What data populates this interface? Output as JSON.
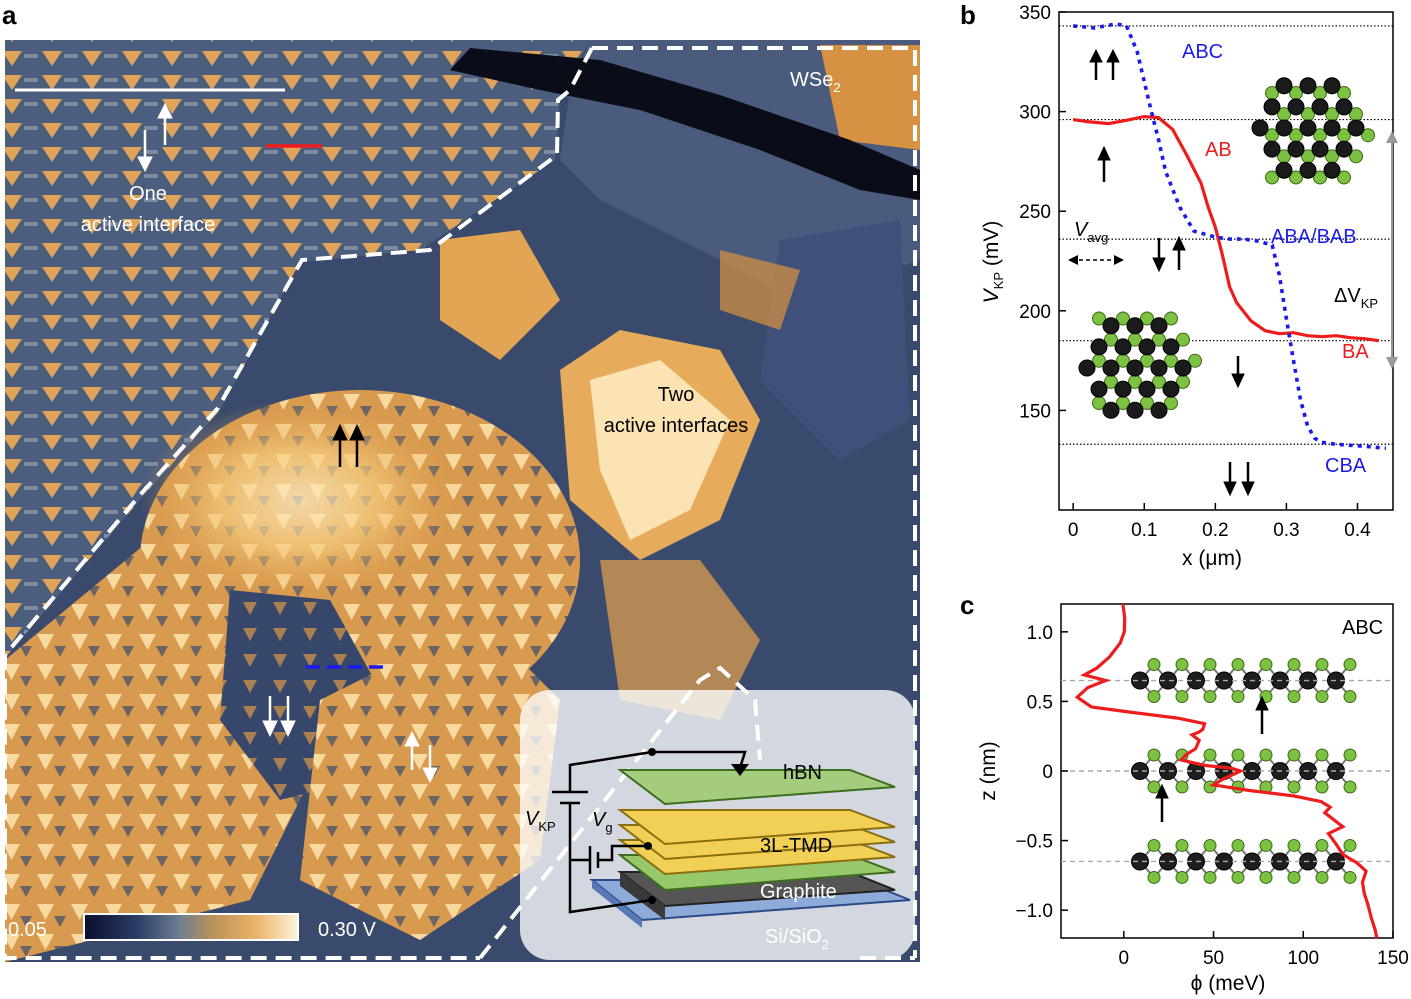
{
  "panel_a": {
    "letter": "a",
    "label_wse2": "WSe",
    "label_wse2_sub": "2",
    "label_one_line1": "One",
    "label_one_line2": "active interface",
    "label_two_line1": "Two",
    "label_two_line2": "active interfaces",
    "colorbar_min": "0.05",
    "colorbar_max": "0.30 V",
    "inset": {
      "hbn": "hBN",
      "tmd": "3L-TMD",
      "graphite": "Graphite",
      "substrate": "Si/SiO",
      "substrate_sub": "2",
      "vkp": "V",
      "vkp_sub": "KP",
      "vg": "V",
      "vg_sub": "g"
    }
  },
  "panel_b": {
    "letter": "b",
    "xlabel": "x (μm)",
    "ylabel": "V",
    "ylabel_sub": "KP",
    "ylabel_unit": " (mV)",
    "label_abc": "ABC",
    "label_ab": "AB",
    "label_ababab": "ABA/BAB",
    "label_ba": "BA",
    "label_cba": "CBA",
    "label_vavg": "V",
    "label_vavg_sub": "avg",
    "label_dvkp": "ΔV",
    "label_dvkp_sub": "KP",
    "colors": {
      "red": "#ee1c1c",
      "blue": "#1a1aee"
    }
  },
  "panel_c": {
    "letter": "c",
    "xlabel": "ϕ (meV)",
    "ylabel": "z (nm)",
    "label_abc": "ABC",
    "colors": {
      "red": "#ee1c1c"
    }
  },
  "chart_data": [
    {
      "type": "line",
      "xlim": [
        -0.02,
        0.45
      ],
      "ylim": [
        100,
        350
      ],
      "x_ticks": [
        "0",
        "0.1",
        "0.2",
        "0.3",
        "0.4"
      ],
      "y_ticks": [
        "150",
        "200",
        "250",
        "300",
        "350"
      ],
      "reference_lines": [
        343,
        296,
        236,
        185,
        133
      ],
      "series": [
        {
          "name": "AB",
          "style": "solid",
          "color": "#ee1c1c",
          "points": [
            [
              0.0,
              296
            ],
            [
              0.02,
              295
            ],
            [
              0.05,
              294
            ],
            [
              0.08,
              296
            ],
            [
              0.1,
              297.5
            ],
            [
              0.12,
              297
            ],
            [
              0.14,
              291
            ],
            [
              0.16,
              278
            ],
            [
              0.18,
              264
            ],
            [
              0.19,
              252
            ],
            [
              0.2,
              242
            ],
            [
              0.21,
              228
            ],
            [
              0.22,
              212
            ],
            [
              0.23,
              204
            ],
            [
              0.25,
              195
            ],
            [
              0.27,
              190
            ],
            [
              0.29,
              188.5
            ],
            [
              0.31,
              189
            ],
            [
              0.33,
              187.5
            ],
            [
              0.35,
              187
            ],
            [
              0.37,
              187.5
            ],
            [
              0.39,
              186.5
            ],
            [
              0.41,
              186
            ],
            [
              0.43,
              185
            ]
          ]
        },
        {
          "name": "ABC",
          "style": "dotted",
          "color": "#1a1aee",
          "points": [
            [
              0.0,
              343
            ],
            [
              0.03,
              342
            ],
            [
              0.06,
              344
            ],
            [
              0.075,
              343
            ],
            [
              0.09,
              330
            ],
            [
              0.1,
              315
            ],
            [
              0.11,
              300
            ],
            [
              0.12,
              286
            ],
            [
              0.13,
              270
            ],
            [
              0.15,
              252
            ],
            [
              0.17,
              240
            ],
            [
              0.2,
              237
            ],
            [
              0.22,
              236
            ],
            [
              0.24,
              236
            ],
            [
              0.26,
              235
            ],
            [
              0.28,
              233
            ],
            [
              0.29,
              218
            ],
            [
              0.3,
              196
            ],
            [
              0.31,
              175
            ],
            [
              0.32,
              155
            ],
            [
              0.33,
              142
            ],
            [
              0.34,
              136
            ],
            [
              0.35,
              134
            ],
            [
              0.37,
              133
            ],
            [
              0.41,
              132
            ],
            [
              0.44,
              131
            ]
          ]
        }
      ]
    },
    {
      "type": "line",
      "xlim": [
        -35,
        150
      ],
      "ylim": [
        -1.2,
        1.2
      ],
      "x_ticks": [
        "0",
        "50",
        "100",
        "150"
      ],
      "y_ticks": [
        "1.0",
        "0.5",
        "0",
        "−0.5",
        "−1.0"
      ],
      "reference_lines": [
        0.65,
        0,
        -0.65
      ],
      "series": [
        {
          "name": "ABC",
          "style": "solid",
          "color": "#ee1c1c",
          "points": [
            [
              -0.5,
              1.2
            ],
            [
              0.5,
              1.1
            ],
            [
              0.3,
              1.0
            ],
            [
              -2,
              0.92
            ],
            [
              -8,
              0.82
            ],
            [
              -15,
              0.74
            ],
            [
              -22,
              0.69
            ],
            [
              -10,
              0.65
            ],
            [
              -20,
              0.6
            ],
            [
              -26,
              0.53
            ],
            [
              -18,
              0.46
            ],
            [
              5,
              0.42
            ],
            [
              30,
              0.38
            ],
            [
              45,
              0.34
            ],
            [
              44,
              0.3
            ],
            [
              42,
              0.28
            ],
            [
              38,
              0.26
            ],
            [
              42,
              0.22
            ],
            [
              40,
              0.16
            ],
            [
              35,
              0.12
            ],
            [
              32,
              0.08
            ],
            [
              45,
              0.04
            ],
            [
              60,
              0.02
            ],
            [
              65,
              0.0
            ],
            [
              55,
              -0.06
            ],
            [
              50,
              -0.1
            ],
            [
              70,
              -0.14
            ],
            [
              95,
              -0.18
            ],
            [
              110,
              -0.22
            ],
            [
              115,
              -0.26
            ],
            [
              112,
              -0.3
            ],
            [
              118,
              -0.36
            ],
            [
              122,
              -0.4
            ],
            [
              114,
              -0.45
            ],
            [
              118,
              -0.52
            ],
            [
              122,
              -0.6
            ],
            [
              130,
              -0.66
            ],
            [
              135,
              -0.72
            ],
            [
              133,
              -0.8
            ],
            [
              134,
              -0.88
            ],
            [
              136,
              -0.96
            ],
            [
              138,
              -1.06
            ],
            [
              140,
              -1.14
            ],
            [
              141,
              -1.2
            ]
          ]
        }
      ]
    }
  ]
}
